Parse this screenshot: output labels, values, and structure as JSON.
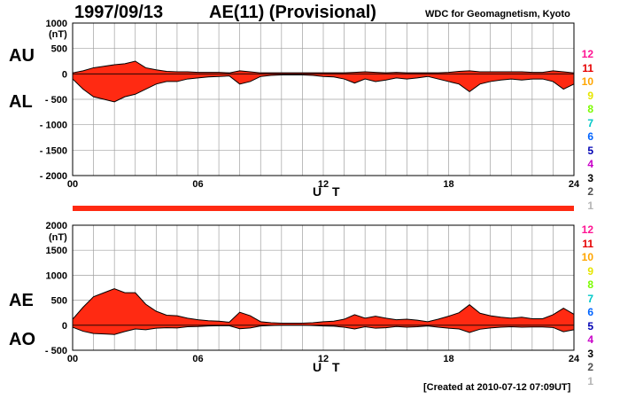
{
  "header": {
    "date": "1997/09/13",
    "title": "AE(11) (Provisional)",
    "org": "WDC for Geomagnetism, Kyoto",
    "created": "[Created at 2010-07-12 07:09UT]"
  },
  "colors": {
    "fill": "#ff2a12",
    "line": "#000000",
    "grid": "#a0a0a0",
    "bar": "#ff2a12"
  },
  "legend": [
    {
      "label": "12",
      "color": "#ff1493"
    },
    {
      "label": "11",
      "color": "#e60000"
    },
    {
      "label": "10",
      "color": "#ffa500"
    },
    {
      "label": "9",
      "color": "#e6e600"
    },
    {
      "label": "8",
      "color": "#7cfc00"
    },
    {
      "label": "7",
      "color": "#00c8c8"
    },
    {
      "label": "6",
      "color": "#0064ff"
    },
    {
      "label": "5",
      "color": "#0000b4"
    },
    {
      "label": "4",
      "color": "#c800c8"
    },
    {
      "label": "3",
      "color": "#000000"
    },
    {
      "label": "2",
      "color": "#505050"
    },
    {
      "label": "1",
      "color": "#b4b4b4"
    }
  ],
  "chart_data": [
    {
      "type": "area",
      "series_labels": [
        "AU",
        "AL"
      ],
      "ylabel": "(nT)",
      "xlabel": "U T",
      "xlim": [
        0,
        24
      ],
      "ylim": [
        -2000,
        1000
      ],
      "yticks": [
        "1000",
        "500",
        "0",
        "- 500",
        "- 1000",
        "- 1500",
        "- 2000"
      ],
      "xticks": [
        "00",
        "06",
        "12",
        "18",
        "24"
      ],
      "x": [
        0,
        0.5,
        1,
        1.5,
        2,
        2.5,
        3,
        3.5,
        4,
        4.5,
        5,
        5.5,
        6,
        6.5,
        7,
        7.5,
        8,
        8.5,
        9,
        9.5,
        10,
        10.5,
        11,
        11.5,
        12,
        12.5,
        13,
        13.5,
        14,
        14.5,
        15,
        15.5,
        16,
        16.5,
        17,
        17.5,
        18,
        18.5,
        19,
        19.5,
        20,
        20.5,
        21,
        21.5,
        22,
        22.5,
        23,
        23.5,
        24
      ],
      "series": [
        {
          "name": "AU",
          "values": [
            20,
            60,
            120,
            150,
            180,
            200,
            250,
            120,
            80,
            50,
            40,
            40,
            30,
            30,
            30,
            20,
            60,
            40,
            20,
            20,
            20,
            20,
            20,
            20,
            20,
            20,
            20,
            30,
            40,
            30,
            20,
            30,
            20,
            20,
            20,
            20,
            30,
            50,
            60,
            40,
            40,
            40,
            40,
            40,
            30,
            30,
            60,
            40,
            20
          ]
        },
        {
          "name": "AL",
          "values": [
            -100,
            -300,
            -450,
            -500,
            -550,
            -450,
            -400,
            -300,
            -200,
            -150,
            -150,
            -100,
            -80,
            -60,
            -50,
            -40,
            -200,
            -150,
            -50,
            -30,
            -20,
            -20,
            -20,
            -30,
            -50,
            -60,
            -100,
            -180,
            -100,
            -150,
            -120,
            -80,
            -100,
            -80,
            -50,
            -100,
            -150,
            -200,
            -350,
            -200,
            -150,
            -120,
            -100,
            -120,
            -100,
            -100,
            -150,
            -300,
            -200
          ]
        }
      ]
    },
    {
      "type": "area",
      "series_labels": [
        "AE",
        "AO"
      ],
      "ylabel": "(nT)",
      "xlabel": "U T",
      "xlim": [
        0,
        24
      ],
      "ylim": [
        -500,
        2000
      ],
      "yticks": [
        "2000",
        "1500",
        "1000",
        "500",
        "0",
        "- 500"
      ],
      "xticks": [
        "00",
        "06",
        "12",
        "18",
        "24"
      ],
      "x": [
        0,
        0.5,
        1,
        1.5,
        2,
        2.5,
        3,
        3.5,
        4,
        4.5,
        5,
        5.5,
        6,
        6.5,
        7,
        7.5,
        8,
        8.5,
        9,
        9.5,
        10,
        10.5,
        11,
        11.5,
        12,
        12.5,
        13,
        13.5,
        14,
        14.5,
        15,
        15.5,
        16,
        16.5,
        17,
        17.5,
        18,
        18.5,
        19,
        19.5,
        20,
        20.5,
        21,
        21.5,
        22,
        22.5,
        23,
        23.5,
        24
      ],
      "series": [
        {
          "name": "AE",
          "values": [
            120,
            360,
            570,
            650,
            730,
            650,
            650,
            420,
            280,
            200,
            190,
            140,
            110,
            90,
            80,
            60,
            260,
            190,
            70,
            50,
            40,
            40,
            40,
            50,
            70,
            80,
            120,
            210,
            140,
            180,
            140,
            110,
            120,
            100,
            70,
            120,
            180,
            250,
            410,
            240,
            190,
            160,
            140,
            160,
            130,
            130,
            210,
            340,
            220
          ]
        },
        {
          "name": "AO",
          "values": [
            -40,
            -120,
            -165,
            -175,
            -185,
            -125,
            -75,
            -90,
            -60,
            -50,
            -55,
            -30,
            -25,
            -15,
            -10,
            -10,
            -70,
            -55,
            -15,
            -5,
            0,
            0,
            0,
            -5,
            -15,
            -20,
            -40,
            -75,
            -30,
            -60,
            -50,
            -25,
            -40,
            -30,
            -15,
            -40,
            -60,
            -75,
            -145,
            -80,
            -55,
            -40,
            -30,
            -40,
            -35,
            -35,
            -45,
            -130,
            -90
          ]
        }
      ]
    }
  ]
}
